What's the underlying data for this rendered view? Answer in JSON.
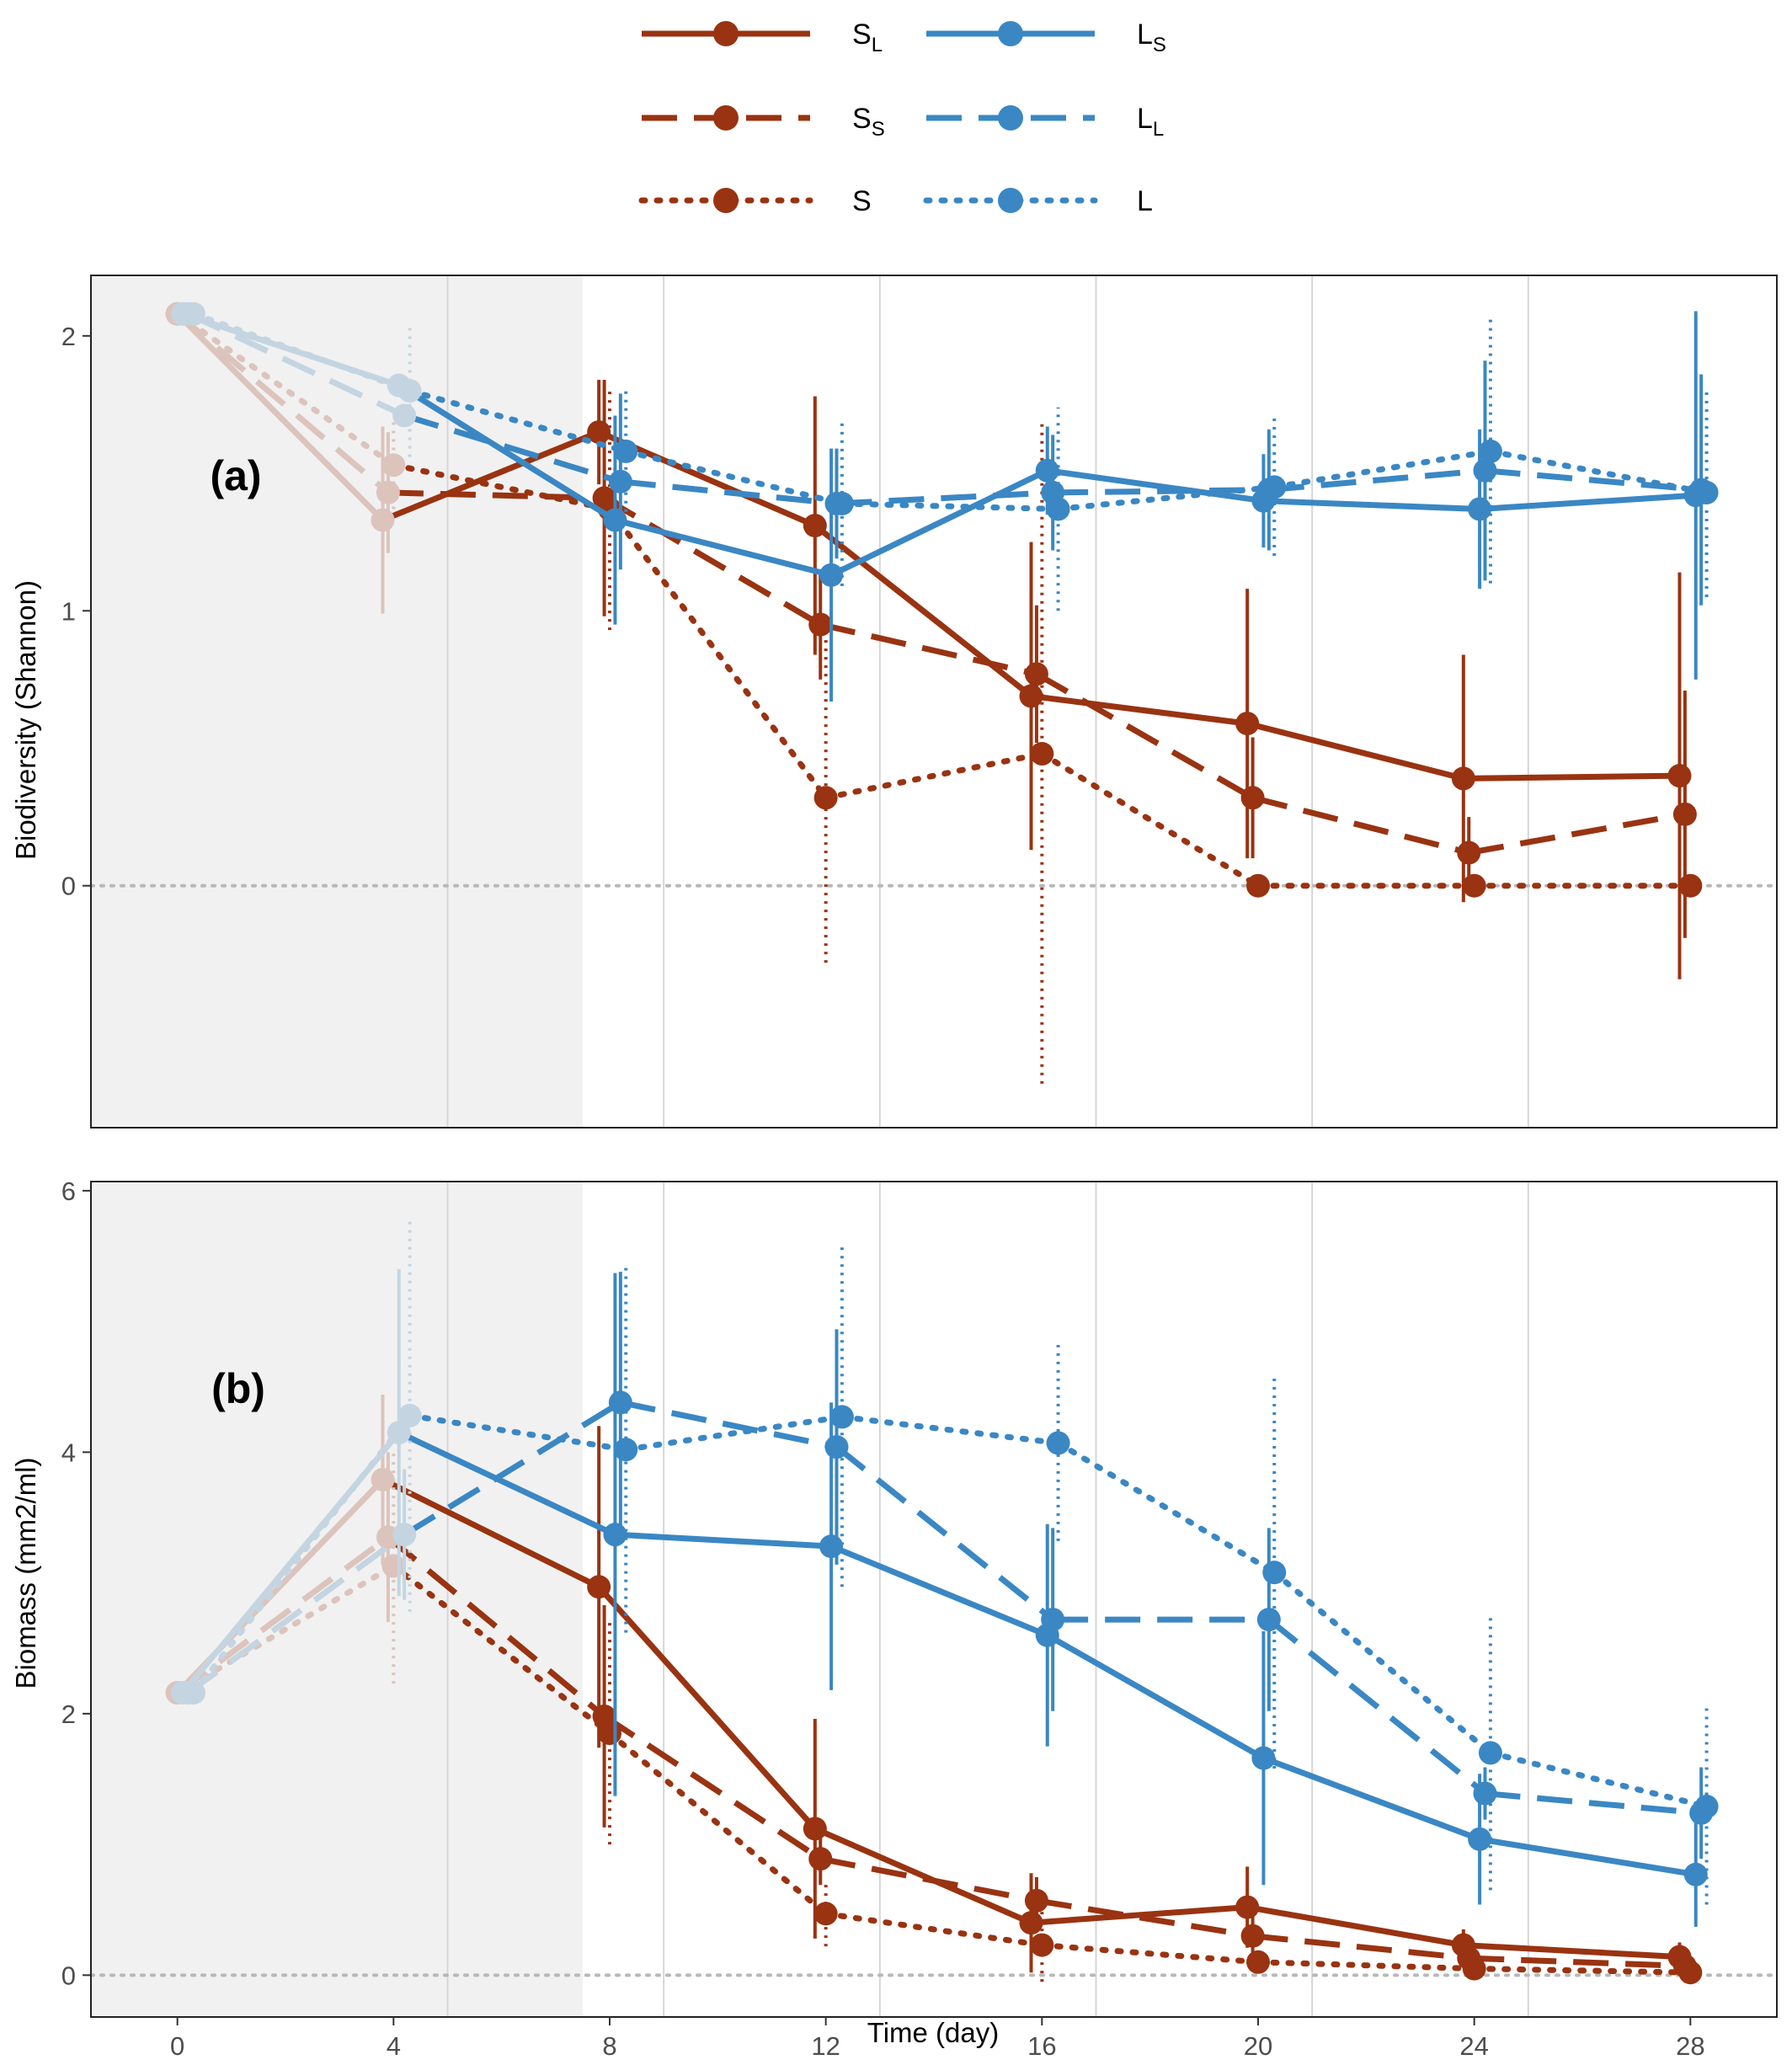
{
  "legend": {
    "items": [
      {
        "key": "SL",
        "base": "S",
        "sub": "L"
      },
      {
        "key": "LS",
        "base": "L",
        "sub": "S"
      },
      {
        "key": "SS",
        "base": "S",
        "sub": "S"
      },
      {
        "key": "LL",
        "base": "L",
        "sub": "L"
      },
      {
        "key": "S",
        "base": "S",
        "sub": ""
      },
      {
        "key": "L",
        "base": "L",
        "sub": ""
      }
    ]
  },
  "colors": {
    "S": "#993311",
    "L": "#3a87c4",
    "S_faded": "#dcc4bc",
    "L_faded": "#c4d5e1",
    "shade": "#f1f1f1",
    "grid": "#d6d6d6",
    "zero_line": "#b8b8b8"
  },
  "x_axis": {
    "label": "Time (day)",
    "ticks": [
      0,
      4,
      8,
      12,
      16,
      20,
      24,
      28
    ],
    "range": [
      -1.6,
      29.6
    ],
    "vertical_grid_at": [
      5,
      9,
      13,
      17,
      21,
      25
    ],
    "shaded_range": [
      -1.6,
      7.5
    ]
  },
  "chart_data": [
    {
      "type": "line",
      "panel_label": "(a)",
      "ylabel": "Biodiversity (Shannon)",
      "ylim": [
        -0.88,
        2.22
      ],
      "yticks": [
        0,
        1,
        2
      ],
      "zero_line": true,
      "series": [
        {
          "key": "SL",
          "group": "S",
          "line_style": "solid",
          "x": [
            0,
            3.8,
            7.8,
            11.8,
            15.8,
            19.8,
            23.8,
            27.8
          ],
          "y": [
            2.08,
            1.33,
            1.65,
            1.31,
            0.69,
            0.59,
            0.39,
            0.4
          ],
          "err": [
            null,
            0.34,
            0.19,
            0.47,
            0.56,
            0.49,
            0.45,
            0.74
          ]
        },
        {
          "key": "SS",
          "group": "S",
          "line_style": "dashed",
          "x": [
            0,
            3.9,
            7.9,
            11.9,
            15.9,
            19.9,
            23.9,
            27.9
          ],
          "y": [
            2.08,
            1.43,
            1.41,
            0.95,
            0.77,
            0.32,
            0.12,
            0.26
          ],
          "err": [
            null,
            0.22,
            0.43,
            0.2,
            0.25,
            0.22,
            0.13,
            0.45
          ]
        },
        {
          "key": "S",
          "group": "S",
          "line_style": "dotted",
          "x": [
            0,
            4.0,
            8.0,
            12.0,
            16.0,
            20.0,
            24.0,
            28.0
          ],
          "y": [
            2.08,
            1.53,
            1.37,
            0.32,
            0.48,
            0.0,
            0.0,
            0.0
          ],
          "err": [
            null,
            0.16,
            0.44,
            0.6,
            1.2,
            0.03,
            0.03,
            0.03
          ]
        },
        {
          "key": "LS",
          "group": "L",
          "line_style": "solid",
          "x": [
            0.1,
            4.1,
            8.1,
            12.1,
            16.1,
            20.1,
            24.1,
            28.1
          ],
          "y": [
            2.08,
            1.82,
            1.33,
            1.13,
            1.51,
            1.4,
            1.37,
            1.42
          ],
          "err": [
            null,
            null,
            0.38,
            0.46,
            0.16,
            0.17,
            0.29,
            0.67
          ]
        },
        {
          "key": "LL",
          "group": "L",
          "line_style": "dashed",
          "x": [
            0.2,
            4.2,
            8.2,
            12.2,
            16.2,
            20.2,
            24.2,
            28.2
          ],
          "y": [
            2.08,
            1.71,
            1.47,
            1.39,
            1.43,
            1.44,
            1.51,
            1.44
          ],
          "err": [
            null,
            null,
            0.32,
            0.2,
            0.21,
            0.22,
            0.4,
            0.42
          ]
        },
        {
          "key": "L",
          "group": "L",
          "line_style": "dotted",
          "x": [
            0.3,
            4.3,
            8.3,
            12.3,
            16.3,
            20.3,
            24.3,
            28.3
          ],
          "y": [
            2.08,
            1.8,
            1.58,
            1.39,
            1.37,
            1.45,
            1.58,
            1.43
          ],
          "err": [
            null,
            0.24,
            0.22,
            0.3,
            0.37,
            0.25,
            0.48,
            0.38
          ]
        }
      ]
    },
    {
      "type": "line",
      "panel_label": "(b)",
      "ylabel": "Biomass (mm2/ml)",
      "ylim": [
        -0.32,
        6.07
      ],
      "yticks": [
        0,
        2,
        4,
        6
      ],
      "zero_line": true,
      "series": [
        {
          "key": "SL",
          "group": "S",
          "line_style": "solid",
          "x": [
            0,
            3.8,
            7.8,
            11.8,
            15.8,
            19.8,
            23.8,
            27.8
          ],
          "y": [
            2.16,
            3.79,
            2.97,
            1.12,
            0.4,
            0.52,
            0.23,
            0.14
          ],
          "err": [
            null,
            0.65,
            1.23,
            0.84,
            0.38,
            0.31,
            0.12,
            0.11
          ]
        },
        {
          "key": "SS",
          "group": "S",
          "line_style": "dashed",
          "x": [
            0,
            3.9,
            7.9,
            11.9,
            15.9,
            19.9,
            23.9,
            27.9
          ],
          "y": [
            2.16,
            3.35,
            1.98,
            0.89,
            0.57,
            0.3,
            0.13,
            0.07
          ],
          "err": [
            null,
            0.65,
            0.85,
            0.2,
            0.18,
            0.2,
            0.12,
            0.07
          ]
        },
        {
          "key": "S",
          "group": "S",
          "line_style": "dotted",
          "x": [
            0,
            4.0,
            8.0,
            12.0,
            16.0,
            20.0,
            24.0,
            28.0
          ],
          "y": [
            2.16,
            3.13,
            1.85,
            0.47,
            0.23,
            0.1,
            0.05,
            0.02
          ],
          "err": [
            null,
            0.9,
            0.85,
            0.25,
            0.28,
            0.08,
            0.05,
            0.03
          ]
        },
        {
          "key": "LS",
          "group": "L",
          "line_style": "solid",
          "x": [
            0.1,
            4.1,
            8.1,
            12.1,
            16.1,
            20.1,
            24.1,
            28.1
          ],
          "y": [
            2.16,
            4.15,
            3.37,
            3.28,
            2.6,
            1.66,
            1.04,
            0.77
          ],
          "err": [
            null,
            1.25,
            2.0,
            1.1,
            0.85,
            0.97,
            0.5,
            0.4
          ]
        },
        {
          "key": "LL",
          "group": "L",
          "line_style": "dashed",
          "x": [
            0.2,
            4.2,
            8.2,
            12.2,
            16.2,
            20.2,
            24.2,
            28.2
          ],
          "y": [
            2.16,
            3.37,
            4.38,
            4.04,
            2.72,
            2.72,
            1.39,
            1.24
          ],
          "err": [
            null,
            0.5,
            1.0,
            0.9,
            0.7,
            0.7,
            0.2,
            0.35
          ]
        },
        {
          "key": "L",
          "group": "L",
          "line_style": "dotted",
          "x": [
            0.3,
            4.3,
            8.3,
            12.3,
            16.3,
            20.3,
            24.3,
            28.3
          ],
          "y": [
            2.16,
            4.28,
            4.02,
            4.27,
            4.07,
            3.08,
            1.7,
            1.29
          ],
          "err": [
            null,
            1.5,
            1.4,
            1.3,
            0.75,
            1.5,
            1.05,
            0.75
          ]
        }
      ]
    }
  ]
}
